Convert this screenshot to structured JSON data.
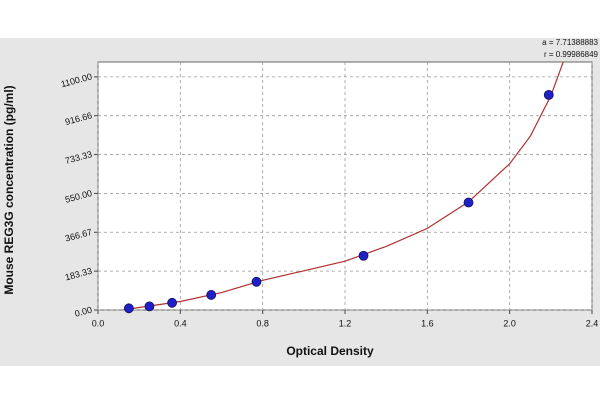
{
  "chart_data": {
    "type": "scatter",
    "xlabel": "Optical Density",
    "ylabel": "Mouse REG3G concentration (pg/ml)",
    "annotations": [
      "a = 7.71388883",
      "r = 0.99986849"
    ],
    "points": {
      "color": "#2020c8",
      "x": [
        0.15,
        0.25,
        0.36,
        0.55,
        0.77,
        1.29,
        1.8,
        2.19
      ],
      "values": [
        8,
        17,
        34,
        71,
        133,
        256,
        507,
        1015
      ]
    },
    "fit": {
      "color": "#b03030",
      "x": [
        0.12,
        0.2,
        0.4,
        0.6,
        0.8,
        1.0,
        1.2,
        1.4,
        1.6,
        1.8,
        2.0,
        2.1,
        2.2,
        2.26
      ],
      "values": [
        0,
        12,
        40,
        82,
        140,
        185,
        230,
        300,
        385,
        510,
        690,
        820,
        1010,
        1170
      ]
    },
    "xlim": [
      0,
      2.4
    ],
    "xticks": [
      {
        "value": 0,
        "label": "0.0"
      },
      0.4,
      0.8,
      1.2,
      1.6,
      {
        "value": 2,
        "label": "2.0"
      },
      2.4
    ],
    "ylim": [
      0,
      1170
    ],
    "yticks": [
      {
        "value": 0,
        "label": "0.00"
      },
      183.33,
      366.67,
      {
        "value": 550,
        "label": "550.00"
      },
      733.33,
      916.66,
      {
        "value": 1100,
        "label": "1100.00"
      }
    ],
    "grid": true
  }
}
